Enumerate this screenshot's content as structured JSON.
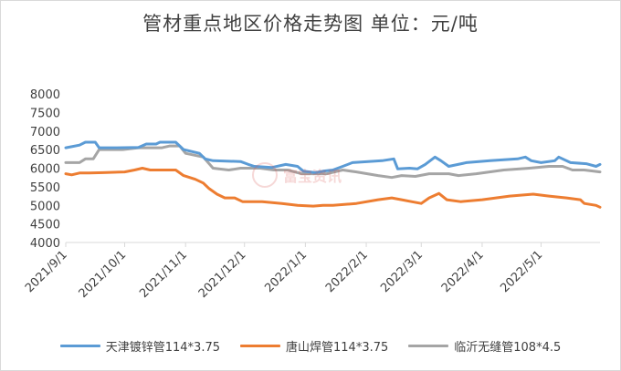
{
  "chart_data": {
    "type": "line",
    "title": "管材重点地区价格走势图  单位：元/吨",
    "ylim": [
      4000,
      8000
    ],
    "yticks": [
      4000,
      4500,
      5000,
      5500,
      6000,
      6500,
      7000,
      7500,
      8000
    ],
    "ytick_labels": [
      "4000",
      "4500",
      "5000",
      "5500",
      "6000",
      "6500",
      "7000",
      "7500",
      "8000"
    ],
    "x_start": "2021-09-01",
    "x_end": "2022-05-31",
    "xtick_dates": [
      "2021-09-01",
      "2021-10-01",
      "2021-11-01",
      "2021-12-01",
      "2022-01-01",
      "2022-02-01",
      "2022-03-01",
      "2022-04-01",
      "2022-05-01"
    ],
    "xtick_labels": [
      "2021/9/1",
      "2021/10/1",
      "2021/11/1",
      "2021/12/1",
      "2022/1/1",
      "2022/2/1",
      "2022/3/1",
      "2022/4/1",
      "2022/5/1"
    ],
    "grid": false,
    "legend_position": "bottom",
    "series": [
      {
        "name": "天津镀锌管114*3.75",
        "color": "#5b9bd5",
        "points": [
          [
            "2021-09-01",
            6550
          ],
          [
            "2021-09-04",
            6580
          ],
          [
            "2021-09-08",
            6620
          ],
          [
            "2021-09-11",
            6700
          ],
          [
            "2021-09-16",
            6700
          ],
          [
            "2021-09-18",
            6550
          ],
          [
            "2021-09-27",
            6550
          ],
          [
            "2021-10-08",
            6560
          ],
          [
            "2021-10-12",
            6650
          ],
          [
            "2021-10-17",
            6650
          ],
          [
            "2021-10-19",
            6700
          ],
          [
            "2021-10-27",
            6700
          ],
          [
            "2021-10-31",
            6500
          ],
          [
            "2021-11-08",
            6400
          ],
          [
            "2021-11-11",
            6250
          ],
          [
            "2021-11-15",
            6200
          ],
          [
            "2021-11-29",
            6180
          ],
          [
            "2021-12-03",
            6100
          ],
          [
            "2021-12-06",
            6050
          ],
          [
            "2021-12-15",
            6020
          ],
          [
            "2021-12-22",
            6100
          ],
          [
            "2021-12-28",
            6050
          ],
          [
            "2021-12-31",
            5920
          ],
          [
            "2022-01-06",
            5880
          ],
          [
            "2022-01-10",
            5920
          ],
          [
            "2022-01-15",
            5950
          ],
          [
            "2022-01-20",
            6050
          ],
          [
            "2022-01-25",
            6150
          ],
          [
            "2022-02-09",
            6200
          ],
          [
            "2022-02-15",
            6250
          ],
          [
            "2022-02-17",
            5980
          ],
          [
            "2022-02-23",
            6000
          ],
          [
            "2022-02-27",
            5980
          ],
          [
            "2022-03-03",
            6100
          ],
          [
            "2022-03-08",
            6300
          ],
          [
            "2022-03-11",
            6200
          ],
          [
            "2022-03-15",
            6050
          ],
          [
            "2022-03-24",
            6150
          ],
          [
            "2022-04-05",
            6200
          ],
          [
            "2022-04-19",
            6250
          ],
          [
            "2022-04-23",
            6300
          ],
          [
            "2022-04-26",
            6200
          ],
          [
            "2022-05-01",
            6150
          ],
          [
            "2022-05-08",
            6200
          ],
          [
            "2022-05-10",
            6300
          ],
          [
            "2022-05-16",
            6150
          ],
          [
            "2022-05-24",
            6120
          ],
          [
            "2022-05-29",
            6050
          ],
          [
            "2022-05-31",
            6100
          ]
        ]
      },
      {
        "name": "唐山焊管114*3.75",
        "color": "#ed7d31",
        "points": [
          [
            "2021-09-01",
            5850
          ],
          [
            "2021-09-04",
            5820
          ],
          [
            "2021-09-08",
            5870
          ],
          [
            "2021-09-13",
            5870
          ],
          [
            "2021-09-20",
            5880
          ],
          [
            "2021-10-01",
            5900
          ],
          [
            "2021-10-06",
            5950
          ],
          [
            "2021-10-10",
            6000
          ],
          [
            "2021-10-14",
            5950
          ],
          [
            "2021-10-27",
            5950
          ],
          [
            "2021-10-31",
            5800
          ],
          [
            "2021-11-06",
            5700
          ],
          [
            "2021-11-10",
            5600
          ],
          [
            "2021-11-13",
            5450
          ],
          [
            "2021-11-17",
            5300
          ],
          [
            "2021-11-21",
            5200
          ],
          [
            "2021-11-26",
            5200
          ],
          [
            "2021-11-30",
            5100
          ],
          [
            "2021-12-10",
            5100
          ],
          [
            "2021-12-20",
            5050
          ],
          [
            "2021-12-28",
            5000
          ],
          [
            "2022-01-05",
            4980
          ],
          [
            "2022-01-10",
            5000
          ],
          [
            "2022-01-15",
            5000
          ],
          [
            "2022-01-27",
            5050
          ],
          [
            "2022-02-07",
            5150
          ],
          [
            "2022-02-14",
            5200
          ],
          [
            "2022-02-19",
            5150
          ],
          [
            "2022-02-24",
            5100
          ],
          [
            "2022-03-01",
            5050
          ],
          [
            "2022-03-05",
            5200
          ],
          [
            "2022-03-10",
            5320
          ],
          [
            "2022-03-14",
            5150
          ],
          [
            "2022-03-21",
            5100
          ],
          [
            "2022-04-01",
            5150
          ],
          [
            "2022-04-15",
            5250
          ],
          [
            "2022-04-27",
            5300
          ],
          [
            "2022-05-05",
            5250
          ],
          [
            "2022-05-14",
            5200
          ],
          [
            "2022-05-21",
            5150
          ],
          [
            "2022-05-23",
            5050
          ],
          [
            "2022-05-29",
            5000
          ],
          [
            "2022-05-31",
            4950
          ]
        ]
      },
      {
        "name": "临沂无缝管108*4.5",
        "color": "#a5a5a5",
        "points": [
          [
            "2021-09-01",
            6150
          ],
          [
            "2021-09-08",
            6150
          ],
          [
            "2021-09-11",
            6250
          ],
          [
            "2021-09-15",
            6250
          ],
          [
            "2021-09-18",
            6500
          ],
          [
            "2021-09-30",
            6500
          ],
          [
            "2021-10-08",
            6550
          ],
          [
            "2021-10-20",
            6550
          ],
          [
            "2021-10-24",
            6600
          ],
          [
            "2021-10-29",
            6600
          ],
          [
            "2021-11-01",
            6400
          ],
          [
            "2021-11-10",
            6300
          ],
          [
            "2021-11-15",
            6000
          ],
          [
            "2021-11-23",
            5950
          ],
          [
            "2021-11-29",
            6000
          ],
          [
            "2021-12-09",
            6000
          ],
          [
            "2021-12-16",
            5950
          ],
          [
            "2021-12-23",
            5950
          ],
          [
            "2021-12-30",
            5850
          ],
          [
            "2022-01-12",
            5850
          ],
          [
            "2022-01-20",
            5950
          ],
          [
            "2022-01-27",
            5900
          ],
          [
            "2022-02-07",
            5800
          ],
          [
            "2022-02-14",
            5750
          ],
          [
            "2022-02-19",
            5800
          ],
          [
            "2022-02-26",
            5780
          ],
          [
            "2022-03-05",
            5850
          ],
          [
            "2022-03-15",
            5850
          ],
          [
            "2022-03-20",
            5800
          ],
          [
            "2022-03-29",
            5850
          ],
          [
            "2022-04-12",
            5950
          ],
          [
            "2022-04-25",
            6000
          ],
          [
            "2022-05-05",
            6050
          ],
          [
            "2022-05-12",
            6050
          ],
          [
            "2022-05-17",
            5950
          ],
          [
            "2022-05-23",
            5950
          ],
          [
            "2022-05-31",
            5900
          ]
        ]
      }
    ]
  },
  "watermark": {
    "text": "富宝资讯"
  }
}
